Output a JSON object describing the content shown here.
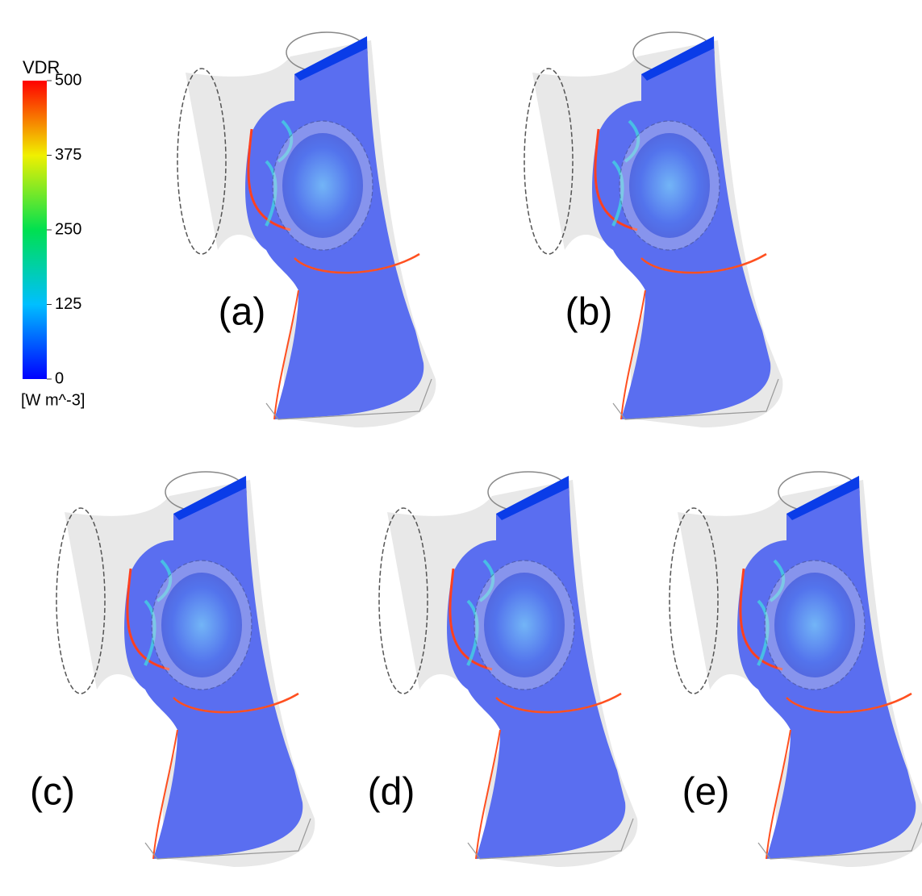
{
  "colorbar": {
    "title": "VDR",
    "ticks": [
      0,
      125,
      250,
      375,
      500
    ],
    "unit": "[W m^-3]"
  },
  "panels": [
    {
      "label": "(a)"
    },
    {
      "label": "(b)"
    },
    {
      "label": "(c)"
    },
    {
      "label": "(d)"
    },
    {
      "label": "(e)"
    }
  ]
}
